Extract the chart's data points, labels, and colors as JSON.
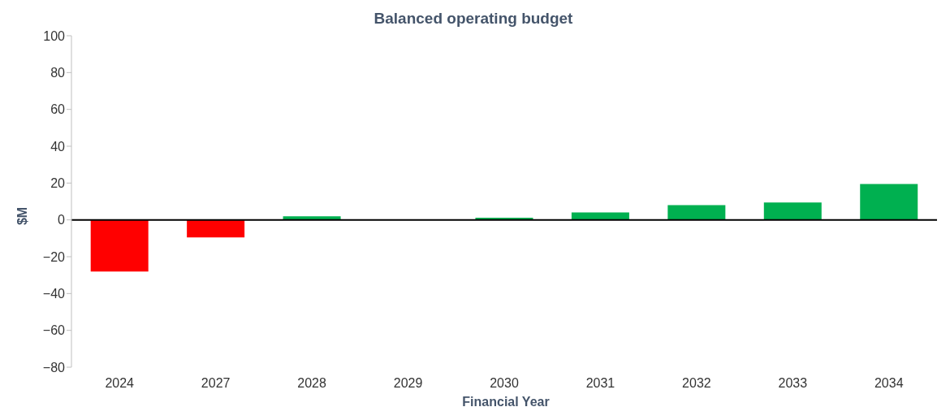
{
  "chart_data": {
    "type": "bar",
    "title": "Balanced operating budget",
    "xlabel": "Financial Year",
    "ylabel": "$M",
    "categories": [
      "2024",
      "2027",
      "2028",
      "2029",
      "2030",
      "2031",
      "2032",
      "2033",
      "2034"
    ],
    "values": [
      -28,
      -9.5,
      2,
      0,
      1.2,
      4,
      8,
      9.5,
      19.5
    ],
    "colors": [
      "#ff0000",
      "#ff0000",
      "#00b050",
      "#00b050",
      "#00b050",
      "#00b050",
      "#00b050",
      "#00b050",
      "#00b050"
    ],
    "ylim": [
      -80,
      100
    ],
    "yticks": [
      -80,
      -60,
      -40,
      -20,
      0,
      20,
      40,
      60,
      80,
      100
    ]
  }
}
